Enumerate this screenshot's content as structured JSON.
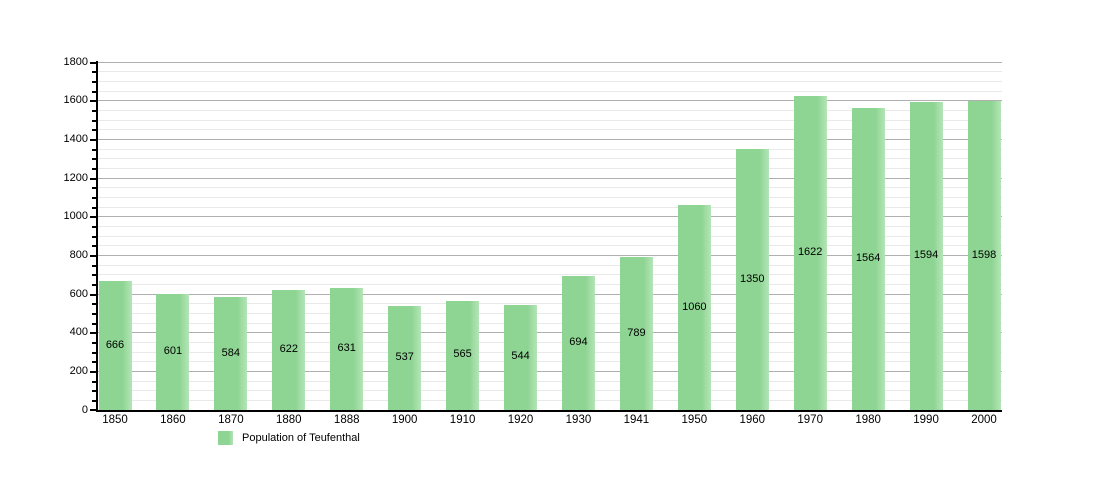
{
  "chart_data": {
    "type": "bar",
    "title": "",
    "categories": [
      "1850",
      "1860",
      "1870",
      "1880",
      "1888",
      "1900",
      "1910",
      "1920",
      "1930",
      "1941",
      "1950",
      "1960",
      "1970",
      "1980",
      "1990",
      "2000"
    ],
    "series": [
      {
        "name": "Population of Teufenthal",
        "values": [
          666,
          601,
          584,
          622,
          631,
          537,
          565,
          544,
          694,
          789,
          1060,
          1350,
          1622,
          1564,
          1594,
          1598
        ]
      }
    ],
    "xlabel": "",
    "ylabel": "",
    "ylim": [
      0,
      1800
    ],
    "y_major_step": 200,
    "y_minor_step": 50,
    "grid": true,
    "legend_position": "bottom-left",
    "bar_labels_inside": true,
    "colors": {
      "bar_fill": "#8ed593",
      "bar_fill_highlight": "#b5e5b8",
      "major_grid": "#b0b0b0",
      "minor_grid": "#e9e9e9",
      "axis": "#000000",
      "text": "#000000",
      "background": "#ffffff"
    }
  },
  "legend": {
    "label": "Population of Teufenthal",
    "swatch_color": "#8ed593"
  }
}
